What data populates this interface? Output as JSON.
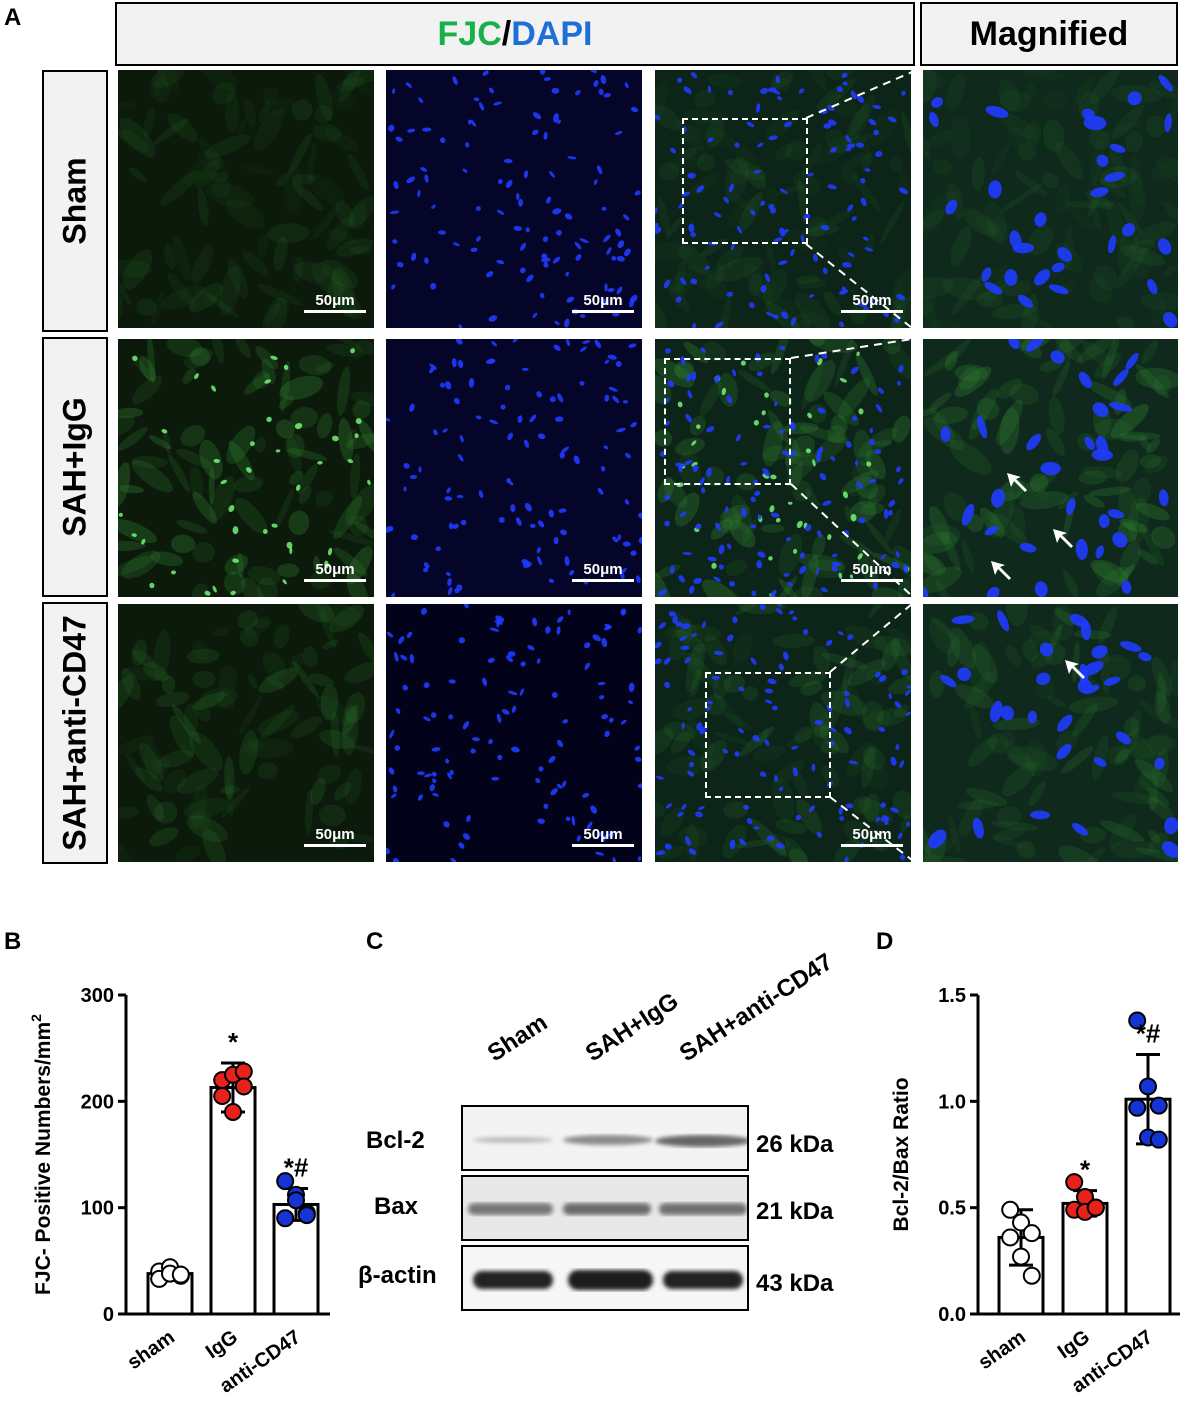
{
  "panels": {
    "a": "A",
    "b": "B",
    "c": "C",
    "d": "D"
  },
  "header": {
    "stain1": "FJC",
    "sep": "/",
    "stain2": "DAPI",
    "magnified": "Magnified"
  },
  "rows": [
    {
      "label": "Sham"
    },
    {
      "label": "SAH+IgG"
    },
    {
      "label": "SAH+anti-CD47"
    }
  ],
  "scalebar": "50μm",
  "colors": {
    "fjc": "#18b04a",
    "dapi": "#1f6fd6",
    "sham": "#ffffff",
    "igg": "#e8221b",
    "antiCD47": "#1633d6"
  },
  "western": {
    "lanes": [
      "Sham",
      "SAH+IgG",
      "SAH+anti-CD47"
    ],
    "bands": [
      {
        "name": "Bcl-2",
        "size": "26 kDa"
      },
      {
        "name": "Bax",
        "size": "21 kDa"
      },
      {
        "name": "β-actin",
        "size": "43 kDa"
      }
    ]
  },
  "chart_data": [
    {
      "type": "bar",
      "ylabel": "FJC- Positive Numbers/mm",
      "ylabel_sup": "2",
      "categories": [
        "sham",
        "IgG",
        "anti-CD47"
      ],
      "values": [
        38,
        213,
        103
      ],
      "errors": [
        6,
        23,
        15
      ],
      "points": [
        [
          40,
          44,
          36,
          33,
          38,
          37
        ],
        [
          220,
          225,
          228,
          205,
          190,
          214
        ],
        [
          125,
          112,
          95,
          90,
          107,
          93
        ]
      ],
      "annotations": [
        "",
        "*",
        "*#"
      ],
      "ylim": [
        0,
        300
      ],
      "yticks": [
        "0",
        "100",
        "200",
        "300"
      ]
    },
    {
      "type": "bar",
      "ylabel": "Bcl-2/Bax Ratio",
      "categories": [
        "sham",
        "IgG",
        "anti-CD47"
      ],
      "values": [
        0.36,
        0.52,
        1.01
      ],
      "errors": [
        0.13,
        0.06,
        0.21
      ],
      "points": [
        [
          0.49,
          0.43,
          0.38,
          0.36,
          0.27,
          0.18
        ],
        [
          0.62,
          0.55,
          0.5,
          0.49,
          0.48,
          0.5
        ],
        [
          1.38,
          1.07,
          0.98,
          0.97,
          0.83,
          0.82
        ]
      ],
      "annotations": [
        "",
        "*",
        "*#"
      ],
      "ylim": [
        0,
        1.5
      ],
      "yticks": [
        "0.0",
        "0.5",
        "1.0",
        "1.5"
      ]
    }
  ]
}
